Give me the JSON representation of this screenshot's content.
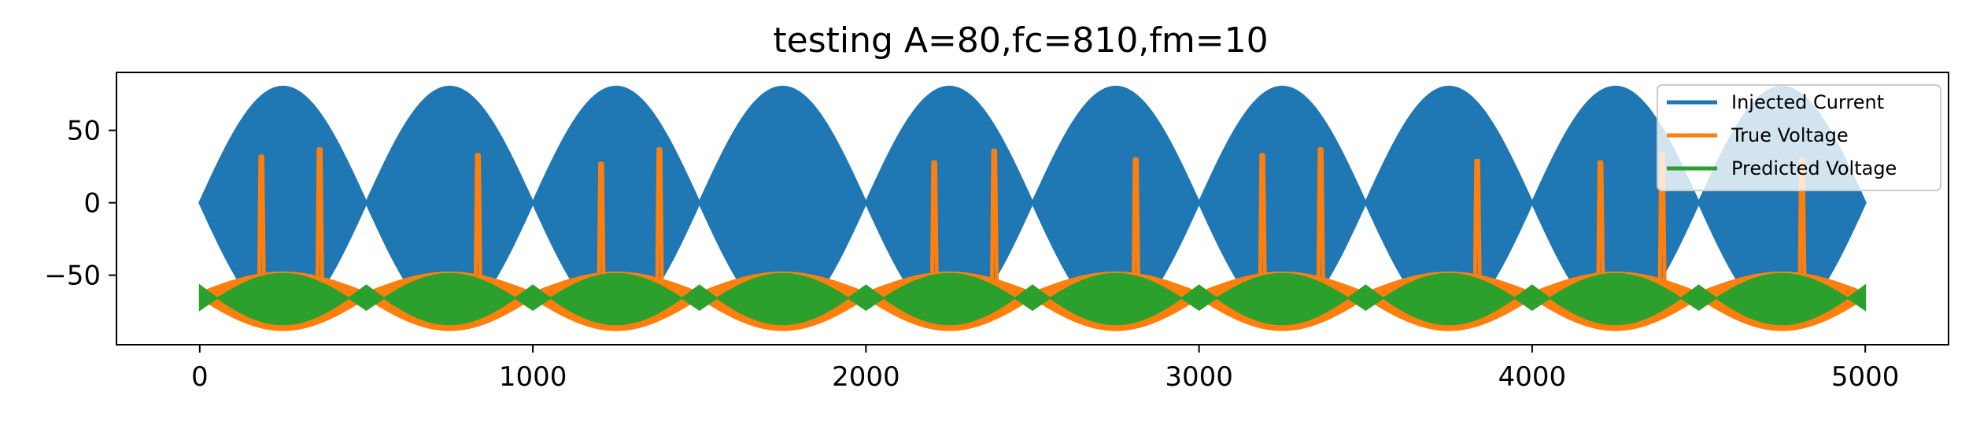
{
  "chart_data": {
    "type": "line",
    "title": "testing A=80,fc=810,fm=10",
    "xlabel": "",
    "ylabel": "",
    "xlim": [
      -250,
      5250
    ],
    "ylim": [
      -98,
      90
    ],
    "x_ticks": [
      0,
      1000,
      2000,
      3000,
      4000,
      5000
    ],
    "y_ticks": [
      50,
      0,
      -50
    ],
    "x_tick_labels": [
      "0",
      "1000",
      "2000",
      "3000",
      "4000",
      "5000"
    ],
    "y_tick_labels": [
      "50",
      "0",
      "−50"
    ],
    "legend_position": "upper right",
    "grid": false,
    "series": [
      {
        "name": "Injected Current",
        "color": "#1f77b4",
        "kind": "am_envelope",
        "amplitude": 80,
        "carrier_frequency": 810,
        "modulation_frequency": 10,
        "x_range": [
          0,
          5000
        ],
        "envelope_zeros": [
          0,
          500,
          1000,
          1500,
          2000,
          2500,
          3000,
          3500,
          4000,
          4500,
          5000
        ],
        "envelope_peaks": [
          250,
          750,
          1250,
          1750,
          2250,
          2750,
          3250,
          3750,
          4250,
          4750
        ]
      },
      {
        "name": "True Voltage",
        "color": "#ff7f0e",
        "kind": "spiking",
        "baseline_range": [
          -88,
          -48
        ],
        "resting_level": -65,
        "spike_peaks": [
          {
            "x": 185,
            "y": 32
          },
          {
            "x": 360,
            "y": 37
          },
          {
            "x": 835,
            "y": 33
          },
          {
            "x": 1205,
            "y": 27
          },
          {
            "x": 1380,
            "y": 37
          },
          {
            "x": 2205,
            "y": 28
          },
          {
            "x": 2385,
            "y": 36
          },
          {
            "x": 2810,
            "y": 30
          },
          {
            "x": 3190,
            "y": 33
          },
          {
            "x": 3365,
            "y": 37
          },
          {
            "x": 3835,
            "y": 29
          },
          {
            "x": 4205,
            "y": 28
          },
          {
            "x": 4390,
            "y": 34
          },
          {
            "x": 4810,
            "y": 30
          }
        ]
      },
      {
        "name": "Predicted Voltage",
        "color": "#2ca02c",
        "kind": "oscillation_band",
        "center": -70,
        "band_min": [
          -84,
          -57
        ],
        "band_max": [
          -49,
          -74
        ]
      }
    ]
  }
}
